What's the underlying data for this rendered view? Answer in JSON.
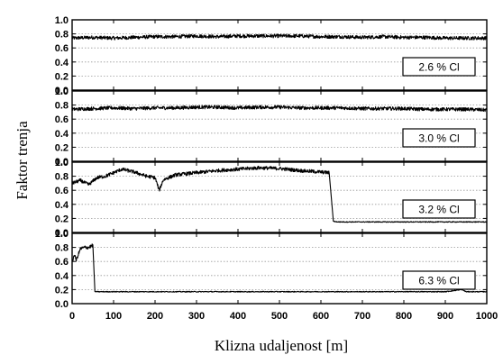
{
  "chart_data": {
    "type": "line",
    "xlabel": "Klizna udaljenost [m]",
    "ylabel": "Faktor trenja",
    "xlim": [
      0,
      1000
    ],
    "ylim": [
      0.0,
      1.0
    ],
    "x_ticks": [
      "0",
      "100",
      "200",
      "300",
      "400",
      "500",
      "600",
      "700",
      "800",
      "900",
      "1000"
    ],
    "y_ticks": [
      "0.0",
      "0.2",
      "0.4",
      "0.6",
      "0.8",
      "1.0"
    ],
    "grid": "horizontal dotted",
    "panels": [
      {
        "label": "2.6 % Cl",
        "series": {
          "x": [
            0,
            50,
            100,
            150,
            200,
            250,
            300,
            350,
            400,
            450,
            500,
            550,
            600,
            650,
            700,
            750,
            800,
            850,
            900,
            950,
            1000
          ],
          "y": [
            0.74,
            0.75,
            0.74,
            0.75,
            0.76,
            0.76,
            0.77,
            0.76,
            0.77,
            0.77,
            0.77,
            0.77,
            0.76,
            0.76,
            0.75,
            0.76,
            0.75,
            0.75,
            0.74,
            0.74,
            0.74
          ]
        }
      },
      {
        "label": "3.0 % Cl",
        "series": {
          "x": [
            0,
            50,
            100,
            150,
            200,
            250,
            300,
            350,
            400,
            450,
            500,
            550,
            600,
            650,
            700,
            750,
            800,
            850,
            900,
            950,
            1000
          ],
          "y": [
            0.74,
            0.75,
            0.76,
            0.75,
            0.76,
            0.76,
            0.77,
            0.77,
            0.76,
            0.77,
            0.77,
            0.76,
            0.76,
            0.76,
            0.75,
            0.75,
            0.75,
            0.74,
            0.74,
            0.74,
            0.73
          ]
        }
      },
      {
        "label": "3.2 % Cl",
        "series": {
          "x": [
            0,
            20,
            40,
            60,
            80,
            100,
            120,
            150,
            180,
            200,
            210,
            220,
            250,
            300,
            350,
            400,
            450,
            500,
            550,
            600,
            620,
            630,
            640,
            700,
            800,
            900,
            1000
          ],
          "y": [
            0.7,
            0.74,
            0.68,
            0.78,
            0.8,
            0.85,
            0.9,
            0.86,
            0.8,
            0.78,
            0.6,
            0.75,
            0.82,
            0.85,
            0.88,
            0.9,
            0.92,
            0.91,
            0.88,
            0.86,
            0.85,
            0.16,
            0.15,
            0.15,
            0.15,
            0.15,
            0.15
          ]
        }
      },
      {
        "label": "6.3 % Cl",
        "series": {
          "x": [
            0,
            5,
            10,
            20,
            30,
            40,
            50,
            55,
            60,
            100,
            200,
            300,
            400,
            500,
            600,
            700,
            800,
            900,
            940,
            950,
            1000
          ],
          "y": [
            0.58,
            0.7,
            0.62,
            0.78,
            0.8,
            0.8,
            0.83,
            0.17,
            0.17,
            0.17,
            0.17,
            0.17,
            0.17,
            0.17,
            0.17,
            0.17,
            0.17,
            0.17,
            0.2,
            0.17,
            0.17
          ]
        }
      }
    ]
  },
  "colors": {
    "line": "#000000",
    "grid": "#9a9a9a",
    "background": "#ffffff"
  }
}
